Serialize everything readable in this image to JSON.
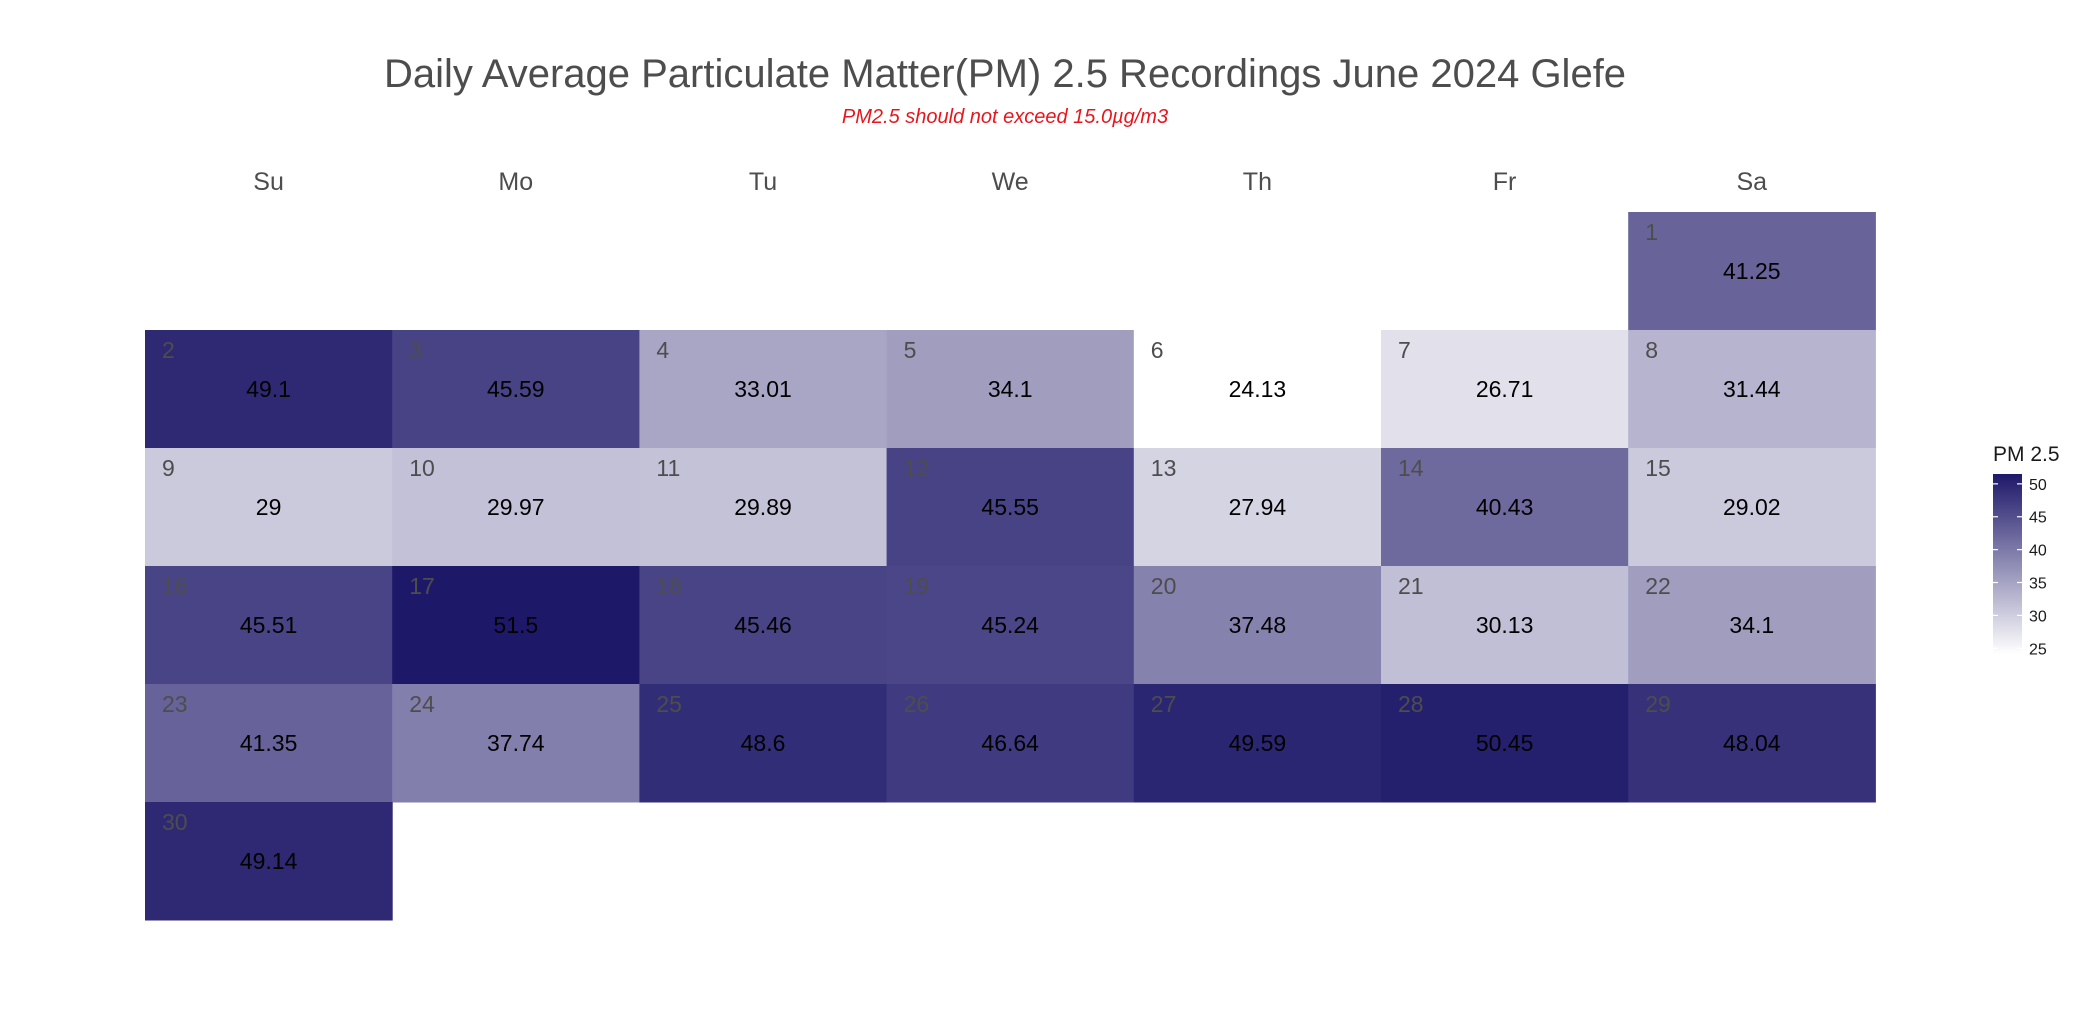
{
  "chart_data": {
    "type": "heatmap",
    "title": "Daily Average Particulate Matter(PM) 2.5 Recordings June 2024 Glefe",
    "subtitle": "PM2.5 should not exceed 15.0µg/m3",
    "weekdays": [
      "Su",
      "Mo",
      "Tu",
      "We",
      "Th",
      "Fr",
      "Sa"
    ],
    "first_weekday_index": 6,
    "days": [
      {
        "day": "1",
        "value": 41.25
      },
      {
        "day": "2",
        "value": 49.1
      },
      {
        "day": "3",
        "value": 45.59
      },
      {
        "day": "4",
        "value": 33.01
      },
      {
        "day": "5",
        "value": 34.1
      },
      {
        "day": "6",
        "value": 24.13
      },
      {
        "day": "7",
        "value": 26.71
      },
      {
        "day": "8",
        "value": 31.44
      },
      {
        "day": "9",
        "value": 29
      },
      {
        "day": "10",
        "value": 29.97
      },
      {
        "day": "11",
        "value": 29.89
      },
      {
        "day": "12",
        "value": 45.55
      },
      {
        "day": "13",
        "value": 27.94
      },
      {
        "day": "14",
        "value": 40.43
      },
      {
        "day": "15",
        "value": 29.02
      },
      {
        "day": "16",
        "value": 45.51
      },
      {
        "day": "17",
        "value": 51.5
      },
      {
        "day": "18",
        "value": 45.46
      },
      {
        "day": "19",
        "value": 45.24
      },
      {
        "day": "20",
        "value": 37.48
      },
      {
        "day": "21",
        "value": 30.13
      },
      {
        "day": "22",
        "value": 34.1
      },
      {
        "day": "23",
        "value": 41.35
      },
      {
        "day": "24",
        "value": 37.74
      },
      {
        "day": "25",
        "value": 48.6
      },
      {
        "day": "26",
        "value": 46.64
      },
      {
        "day": "27",
        "value": 49.59
      },
      {
        "day": "28",
        "value": 50.45
      },
      {
        "day": "29",
        "value": 48.04
      },
      {
        "day": "30",
        "value": 49.14
      }
    ],
    "legend": {
      "title": "PM 2.5",
      "ticks": [
        25,
        30,
        35,
        40,
        45,
        50
      ],
      "range": [
        24.13,
        51.5
      ],
      "color_low": "#ffffff",
      "color_high": "#1e1869"
    }
  }
}
